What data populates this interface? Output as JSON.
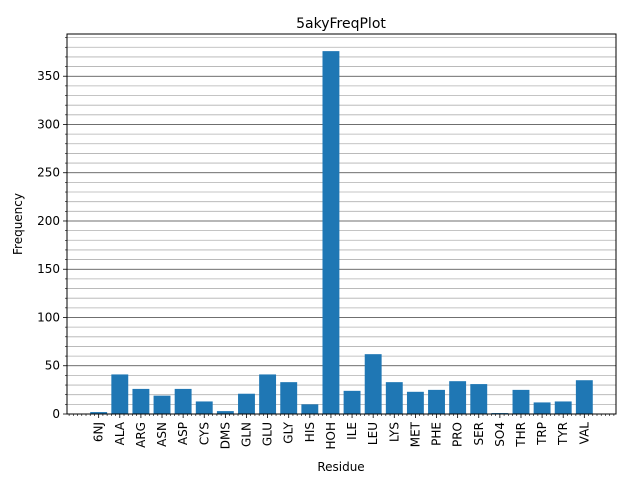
{
  "chart_data": {
    "type": "bar",
    "title": "5akyFreqPlot",
    "xlabel": "Residue",
    "ylabel": "Frequency",
    "categories": [
      "6NJ",
      "ALA",
      "ARG",
      "ASN",
      "ASP",
      "CYS",
      "DMS",
      "GLN",
      "GLU",
      "GLY",
      "HIS",
      "HOH",
      "ILE",
      "LEU",
      "LYS",
      "MET",
      "PHE",
      "PRO",
      "SER",
      "SO4",
      "THR",
      "TRP",
      "TYR",
      "VAL"
    ],
    "values": [
      2,
      41,
      26,
      19,
      26,
      13,
      3,
      21,
      41,
      33,
      10,
      376,
      24,
      62,
      33,
      23,
      25,
      34,
      31,
      1,
      25,
      12,
      13,
      35
    ],
    "ylim": [
      0,
      393.75
    ],
    "yticks": [
      0,
      50,
      100,
      150,
      200,
      250,
      300,
      350
    ],
    "grid": "major and minor horizontal lines",
    "bar_color": "#1f77b4",
    "major_grid_color": "#3f3f3f",
    "minor_grid_color": "#b0b0b0"
  }
}
